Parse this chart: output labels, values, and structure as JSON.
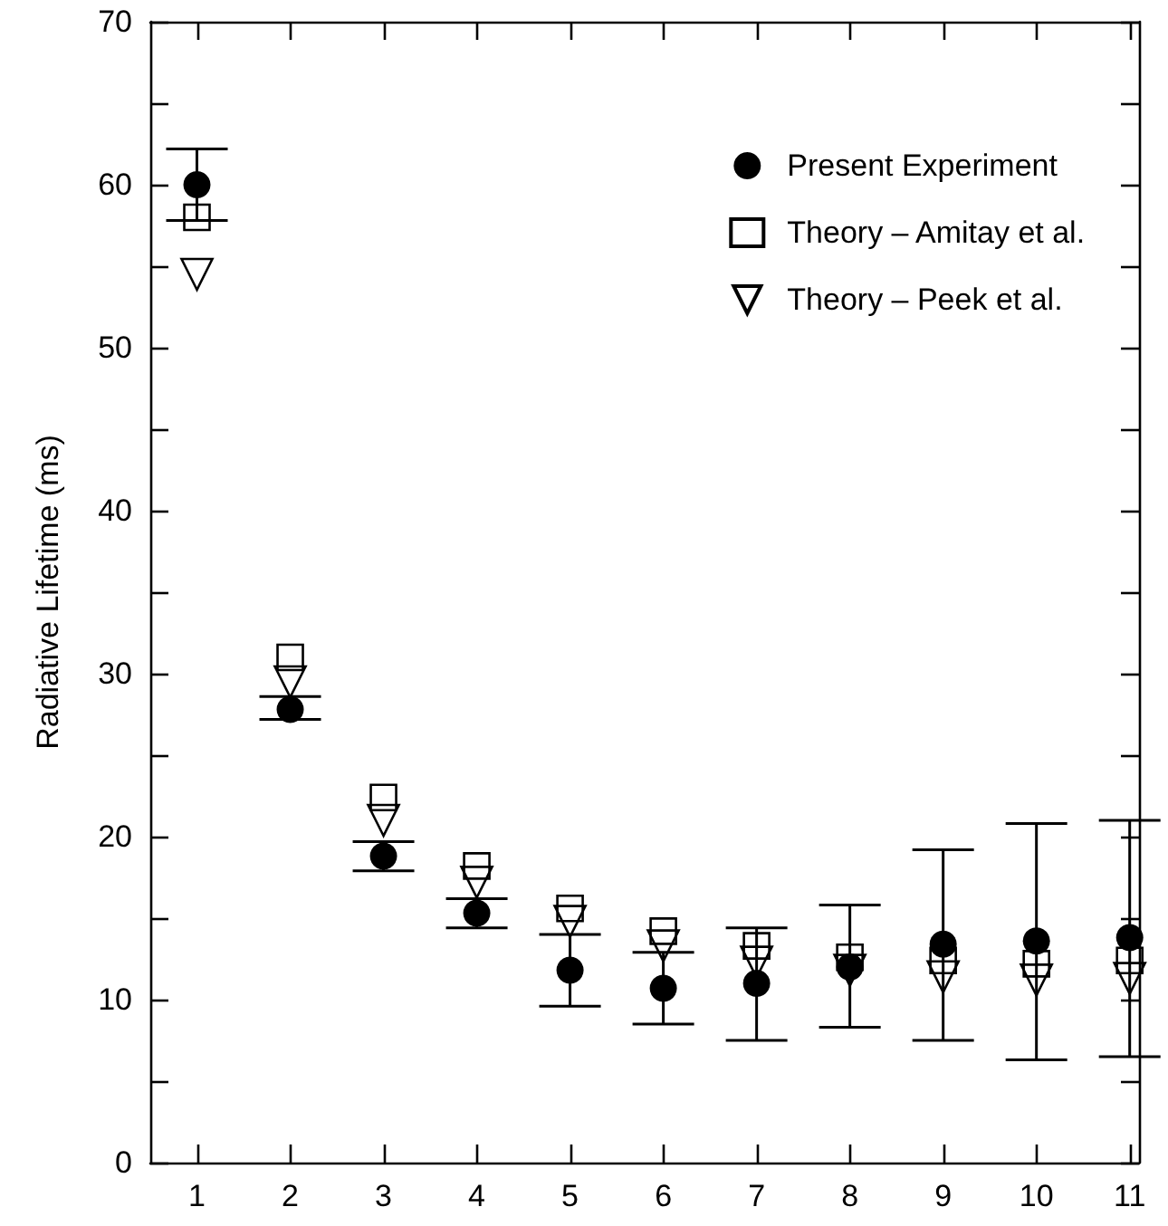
{
  "chart_data": {
    "type": "scatter",
    "ylabel": "Radiative Lifetime (ms)",
    "x": [
      1,
      2,
      3,
      4,
      5,
      6,
      7,
      8,
      9,
      10,
      11
    ],
    "xlim": [
      0.5,
      11.1
    ],
    "xticks": [
      1,
      2,
      3,
      4,
      5,
      6,
      7,
      8,
      9,
      10,
      11
    ],
    "ylim": [
      0,
      70
    ],
    "yticks": [
      0,
      {
        "value": 5,
        "label": null
      },
      10,
      {
        "value": 15,
        "label": null
      },
      20,
      {
        "value": 25,
        "label": null
      },
      30,
      {
        "value": 35,
        "label": null
      },
      40,
      {
        "value": 45,
        "label": null
      },
      50,
      {
        "value": 55,
        "label": null
      },
      60,
      {
        "value": 65,
        "label": null
      },
      70
    ],
    "grid": false,
    "legend": "top right",
    "series": [
      {
        "name": "Present Experiment",
        "color": "#000000",
        "marker": "circle",
        "values": [
          60,
          27.8,
          18.8,
          15.3,
          11.8,
          10.7,
          11.0,
          12.0,
          13.4,
          13.6,
          13.8
        ],
        "errors": [
          [
            57.8,
            62.2
          ],
          [
            27.2,
            28.6
          ],
          [
            17.9,
            19.7
          ],
          [
            14.4,
            16.2
          ],
          [
            9.6,
            14.0
          ],
          [
            8.5,
            12.9
          ],
          [
            7.5,
            14.4
          ],
          [
            8.3,
            15.8
          ],
          [
            7.5,
            19.2
          ],
          [
            6.3,
            20.8
          ],
          [
            6.5,
            21.0
          ]
        ]
      },
      {
        "name": "Theory – Amitay et al.",
        "color": "#000000",
        "marker": "square",
        "values": [
          58,
          31,
          22.4,
          18.2,
          15.6,
          14.2,
          13.3,
          12.6,
          12.4,
          12.2,
          12.4
        ]
      },
      {
        "name": "Theory – Peek et al.",
        "color": "#000000",
        "marker": "triangle",
        "values": [
          54.5,
          29.5,
          21,
          17.2,
          14.8,
          13.3,
          12.3,
          11.8,
          11.4,
          11.2,
          11.3
        ]
      }
    ]
  }
}
